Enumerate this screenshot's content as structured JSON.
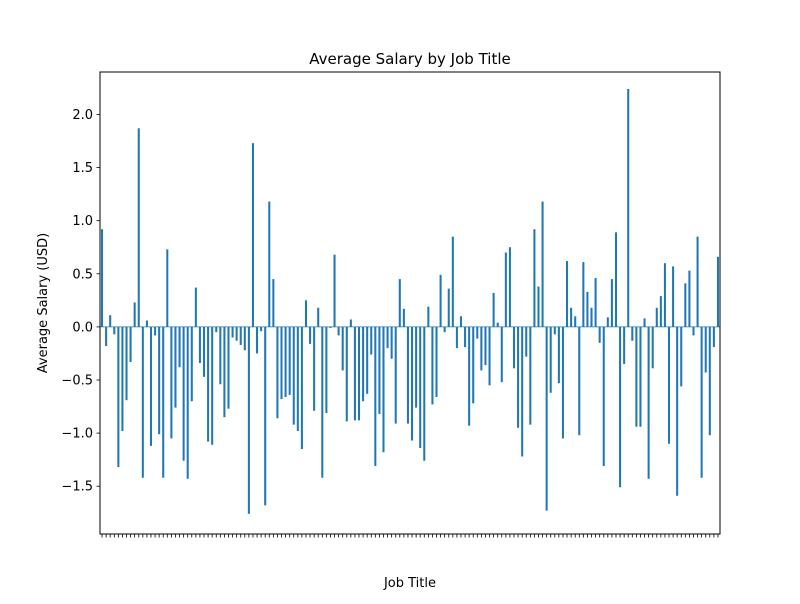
{
  "chart_data": {
    "type": "bar",
    "title": "Average Salary by Job Title",
    "xlabel": "Job Title",
    "ylabel": "Average Salary (USD)",
    "ylim": [
      -1.95,
      2.4
    ],
    "yticks": [
      -1.5,
      -1.0,
      -0.5,
      0.0,
      0.5,
      1.0,
      1.5,
      2.0
    ],
    "ytick_labels": [
      "−1.5",
      "−1.0",
      "−0.5",
      "0.0",
      "0.5",
      "1.0",
      "1.5",
      "2.0"
    ],
    "grid": false,
    "bar_color": "#1f77b4",
    "values": [
      0.92,
      -0.18,
      0.11,
      -0.07,
      -1.32,
      -0.98,
      -0.69,
      -0.33,
      0.23,
      1.87,
      -1.42,
      0.06,
      -1.12,
      -0.08,
      -1.01,
      -1.42,
      0.73,
      -1.05,
      -0.76,
      -0.38,
      -1.26,
      -1.43,
      -0.7,
      0.37,
      -0.34,
      -0.47,
      -1.08,
      -1.11,
      -0.05,
      -0.54,
      -0.85,
      -0.77,
      -0.1,
      -0.13,
      -0.17,
      -0.22,
      -1.76,
      1.73,
      -0.25,
      -0.04,
      -1.68,
      1.18,
      0.45,
      -0.86,
      -0.68,
      -0.66,
      -0.64,
      -0.92,
      -0.98,
      -1.15,
      0.25,
      -0.16,
      -0.79,
      0.18,
      -1.42,
      -0.81,
      -0.01,
      0.68,
      -0.08,
      -0.41,
      -0.89,
      0.07,
      -0.88,
      -0.88,
      -0.7,
      -0.63,
      -0.26,
      -1.31,
      -0.82,
      -1.18,
      -0.2,
      -0.3,
      -0.91,
      0.45,
      0.17,
      -0.91,
      -1.07,
      -0.76,
      -1.14,
      -1.26,
      0.19,
      -0.73,
      -0.66,
      0.49,
      -0.05,
      0.36,
      0.85,
      -0.2,
      0.1,
      -0.19,
      -0.93,
      -0.72,
      -0.11,
      -0.41,
      -0.36,
      -0.55,
      0.32,
      0.04,
      -0.52,
      0.7,
      0.75,
      -0.39,
      -0.95,
      -1.22,
      -0.28,
      -0.92,
      0.92,
      0.38,
      1.18,
      -1.73,
      -0.62,
      -0.07,
      -0.53,
      -1.05,
      0.62,
      0.18,
      0.1,
      -1.02,
      0.61,
      0.33,
      0.18,
      0.46,
      -0.15,
      -1.31,
      0.09,
      0.45,
      0.89,
      -1.51,
      -0.35,
      2.24,
      -0.13,
      -0.94,
      -0.94,
      0.08,
      -1.43,
      -0.39,
      0.18,
      0.29,
      0.6,
      -1.1,
      0.57,
      -1.59,
      -0.56,
      0.41,
      0.53,
      -0.08,
      0.85,
      -1.42,
      -0.43,
      -1.02,
      -0.19,
      0.66
    ]
  }
}
